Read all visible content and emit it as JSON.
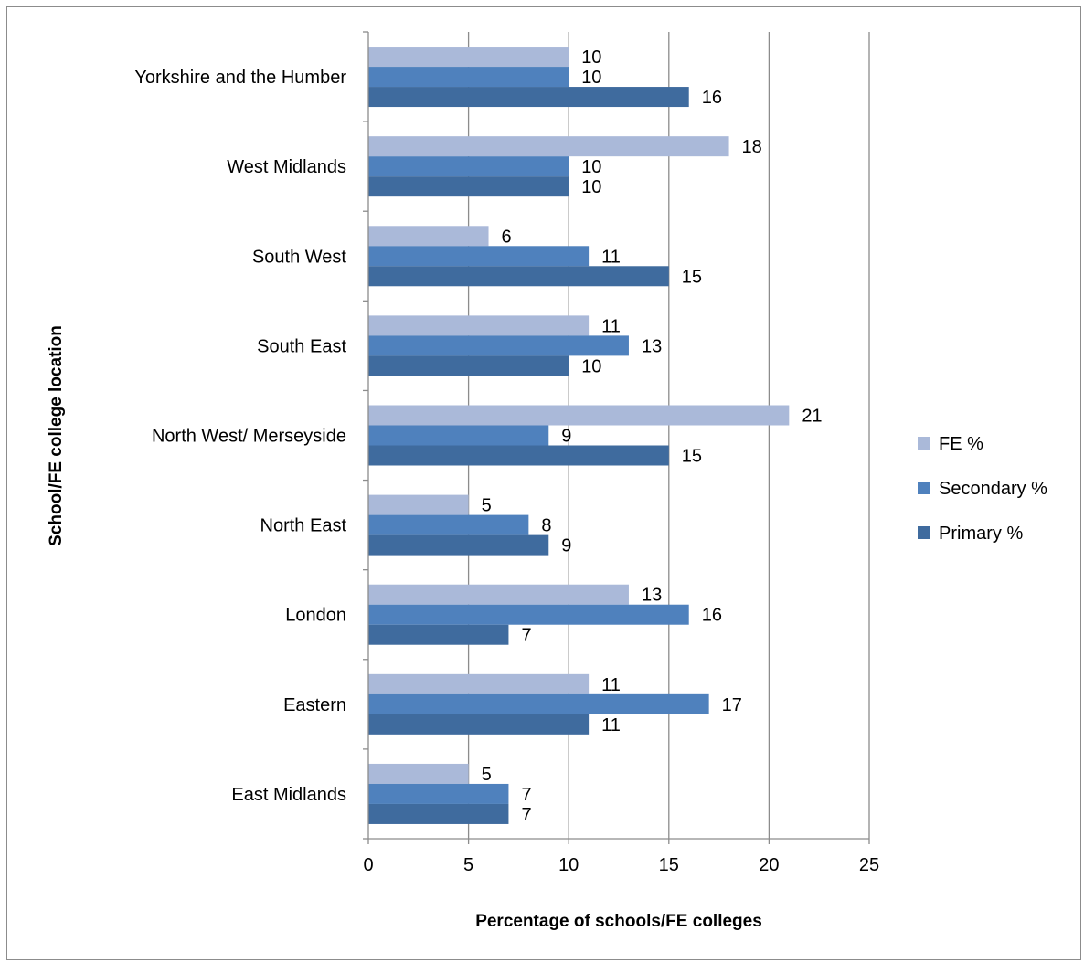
{
  "chart_data": {
    "type": "bar",
    "orientation": "horizontal",
    "categories": [
      "East Midlands",
      "Eastern",
      "London",
      "North East",
      "North West/ Merseyside",
      "South East",
      "South West",
      "West Midlands",
      "Yorkshire and the Humber"
    ],
    "series": [
      {
        "name": "FE  %",
        "color": "#aab9d9",
        "values": [
          5,
          11,
          13,
          5,
          21,
          11,
          6,
          18,
          10
        ]
      },
      {
        "name": "Secondary %",
        "color": "#4f81bd",
        "values": [
          7,
          17,
          16,
          8,
          9,
          13,
          11,
          10,
          10
        ]
      },
      {
        "name": "Primary %",
        "color": "#3f6b9e",
        "values": [
          7,
          11,
          7,
          9,
          15,
          10,
          15,
          10,
          16
        ]
      }
    ],
    "xlabel": "Percentage of schools/FE colleges",
    "ylabel": "School/FE college location",
    "xlim": [
      0,
      25
    ],
    "xticks": [
      "0",
      "5",
      "10",
      "15",
      "20",
      "25"
    ],
    "grid": true,
    "legend_position": "right",
    "data_labels": true
  }
}
